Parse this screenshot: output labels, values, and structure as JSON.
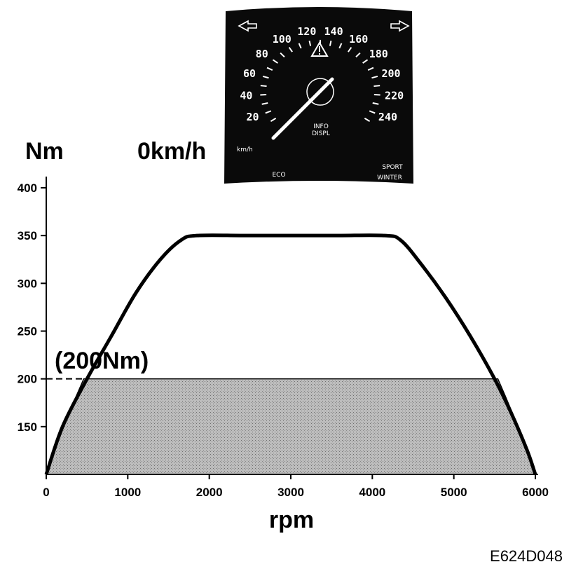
{
  "chart_data": {
    "type": "area",
    "x_label": "rpm",
    "y_label": "Nm",
    "x_ticks": [
      "0",
      "1000",
      "2000",
      "3000",
      "4000",
      "5000",
      "6000"
    ],
    "y_ticks": [
      "150",
      "200",
      "250",
      "300",
      "350",
      "400"
    ],
    "xlim": [
      0,
      6000
    ],
    "ylim": [
      100,
      400
    ],
    "grid": false,
    "curve": {
      "x": [
        0,
        200,
        500,
        800,
        1100,
        1400,
        1650,
        1850,
        2500,
        3500,
        4150,
        4350,
        4600,
        4900,
        5200,
        5500,
        5700,
        5900,
        6000
      ],
      "y": [
        100,
        150,
        200,
        245,
        290,
        325,
        345,
        350,
        350,
        350,
        350,
        345,
        320,
        285,
        245,
        200,
        165,
        125,
        100
      ]
    },
    "limit_band": {
      "y": 200,
      "x_start": 460,
      "x_end": 5540
    },
    "annotation": "(200Nm)",
    "speed_readout": "0km/h",
    "figure_code": "E624D048",
    "gauge": {
      "labels": [
        "20",
        "40",
        "60",
        "80",
        "100",
        "120",
        "140",
        "160",
        "180",
        "200",
        "220",
        "240"
      ],
      "unit": "km/h",
      "info_line1": "INFO",
      "info_line2": "DISPL",
      "mode_sport": "SPORT",
      "mode_winter": "WINTER",
      "eco": "ECO",
      "needle_value": 0,
      "icons": [
        "left-arrow-icon",
        "warning-icon",
        "right-arrow-icon"
      ]
    }
  }
}
